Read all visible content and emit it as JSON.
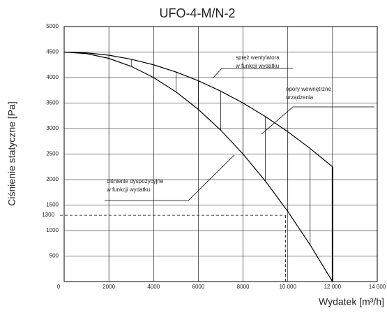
{
  "chart_data": {
    "type": "line",
    "title": "UFO-4-M/N-2",
    "x_label": "Wydatek [m³/h]",
    "y_label": "Ciśnienie statyczne [Pa]",
    "x": [
      0,
      1000,
      2000,
      3000,
      4000,
      5000,
      6000,
      7000,
      8000,
      9000,
      10000,
      11000,
      12000
    ],
    "series": [
      {
        "color": "#000000",
        "values": [
          4500,
          4484,
          4438,
          4359,
          4250,
          4109,
          3938,
          3734,
          3500,
          3234,
          2938,
          2609,
          2250
        ]
      },
      {
        "color": "#000000",
        "values": [
          4500,
          4469,
          4375,
          4219,
          4000,
          3719,
          3375,
          2969,
          2500,
          1969,
          1375,
          719,
          0
        ]
      }
    ],
    "xlim": [
      0,
      14000
    ],
    "xticks": [
      0,
      2000,
      4000,
      6000,
      8000,
      {
        "value": 10000,
        "label": "10 000"
      },
      {
        "value": 12000,
        "label": "12 000"
      },
      {
        "value": 14000,
        "label": "14 000"
      }
    ],
    "ylim": [
      0,
      5000
    ],
    "yticks": [
      500,
      1000,
      1500,
      2000,
      2500,
      3000,
      3500,
      4000,
      4500,
      5000
    ],
    "grid": true,
    "operating_point": {
      "x": 9900,
      "y": 1300
    },
    "annotations": [
      {
        "lines": [
          "spręż wentylatora",
          "w funkcji wydatku"
        ]
      },
      {
        "lines": [
          "opory wewnętrzne",
          "urządzenia"
        ]
      },
      {
        "lines": [
          "ciśnienie dyspozycyjne",
          "w funkcji wydatku"
        ]
      }
    ]
  }
}
